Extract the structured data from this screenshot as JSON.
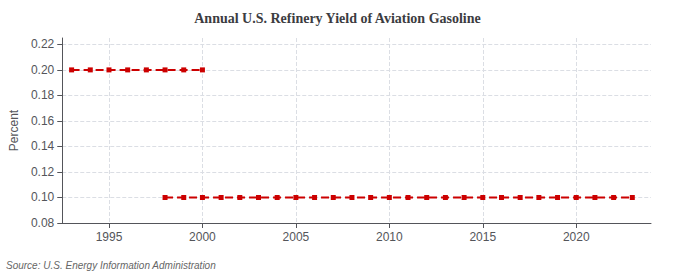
{
  "chart_data": {
    "type": "line",
    "title": "Annual U.S. Refinery Yield of Aviation Gasoline",
    "ylabel": "Percent",
    "annotation": "Source: U.S. Energy Information Administration",
    "series": [
      {
        "color": "#cc0000",
        "marker": "square",
        "line_style": "dashed",
        "x": [
          1993,
          1994,
          1995,
          1996,
          1997,
          1998,
          1999,
          2000
        ],
        "values": [
          0.2,
          0.2,
          0.2,
          0.2,
          0.2,
          0.2,
          0.2,
          0.2
        ]
      },
      {
        "color": "#cc0000",
        "marker": "square",
        "line_style": "dashed",
        "x": [
          1998,
          1999,
          2000,
          2001,
          2002,
          2003,
          2004,
          2005,
          2006,
          2007,
          2008,
          2009,
          2010,
          2011,
          2012,
          2013,
          2014,
          2015,
          2016,
          2017,
          2018,
          2019,
          2020,
          2021,
          2022,
          2023
        ],
        "values": [
          0.1,
          0.1,
          0.1,
          0.1,
          0.1,
          0.1,
          0.1,
          0.1,
          0.1,
          0.1,
          0.1,
          0.1,
          0.1,
          0.1,
          0.1,
          0.1,
          0.1,
          0.1,
          0.1,
          0.1,
          0.1,
          0.1,
          0.1,
          0.1,
          0.1,
          0.1
        ]
      }
    ],
    "xlim": [
      1992.5,
      2024
    ],
    "xticks": [
      1995,
      2000,
      2005,
      2010,
      2015,
      2020
    ],
    "ylim": [
      0.08,
      0.225
    ],
    "yticks": [
      0.08,
      {
        "value": 0.1,
        "label": "0.10"
      },
      0.12,
      0.14,
      0.16,
      0.18,
      {
        "value": 0.2,
        "label": "0.20"
      },
      0.22
    ],
    "grid": true
  }
}
